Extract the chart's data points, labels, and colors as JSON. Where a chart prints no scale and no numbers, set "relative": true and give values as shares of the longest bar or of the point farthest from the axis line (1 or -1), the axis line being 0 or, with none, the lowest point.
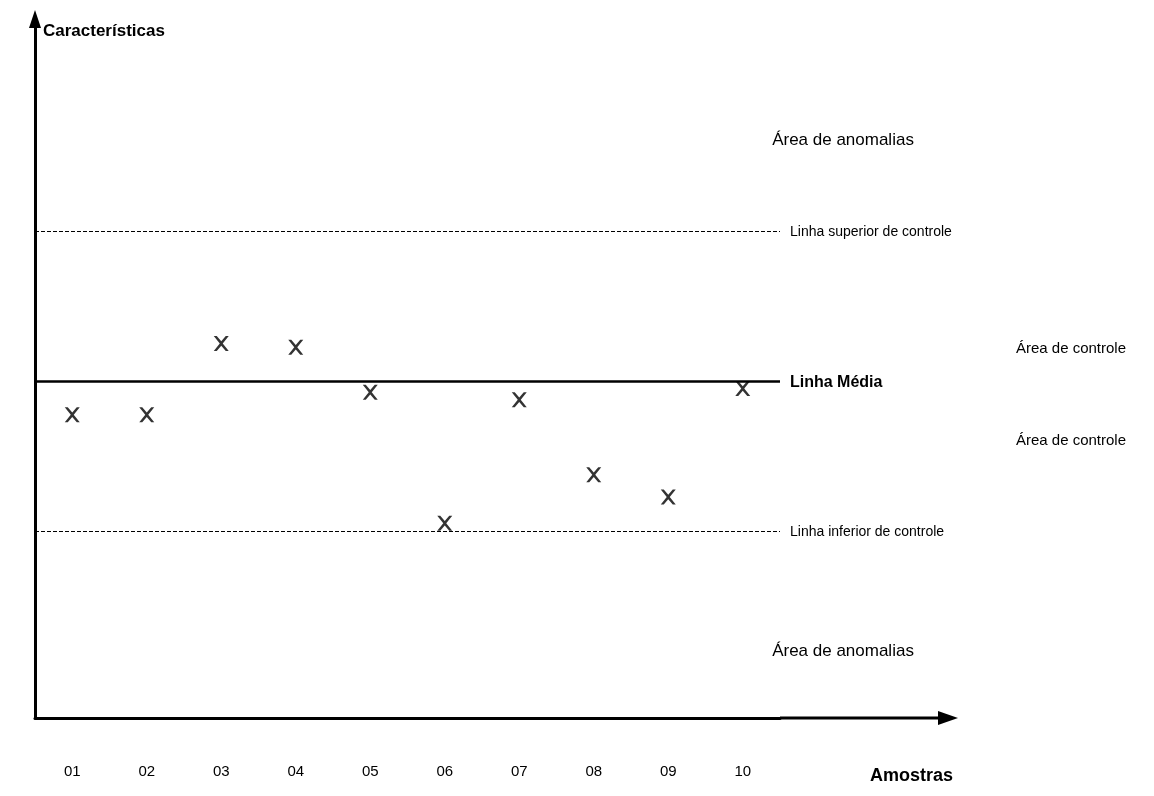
{
  "chart_data": {
    "type": "scatter",
    "relative": true,
    "xlabel": "Amostras",
    "marker": "cross",
    "grid": false,
    "categories": [
      "01",
      "02",
      "03",
      "04",
      "05",
      "06",
      "07",
      "08",
      "09",
      "10"
    ],
    "series": [
      {
        "color": "#000000",
        "values": [
          0.81,
          0.81,
          1,
          0.99,
          0.87,
          0.52,
          0.85,
          0.65,
          0.59,
          0.88
        ]
      }
    ],
    "ref_lines": [
      {
        "axis": "y",
        "value": 1.3,
        "label": "Linha superior de controle",
        "line_style": "dashed",
        "color": "#000000"
      },
      {
        "axis": "y",
        "value": 0.9,
        "label": "Linha Média",
        "line_style": "solid",
        "color": "#000000"
      },
      {
        "axis": "y",
        "value": 0.5,
        "label": "Linha inferior de controle",
        "line_style": "dashed",
        "color": "#000000"
      }
    ],
    "annotations": [
      "Características",
      "Área de anomalias",
      "Área de controle",
      "Área de controle",
      "Área de anomalias"
    ]
  }
}
